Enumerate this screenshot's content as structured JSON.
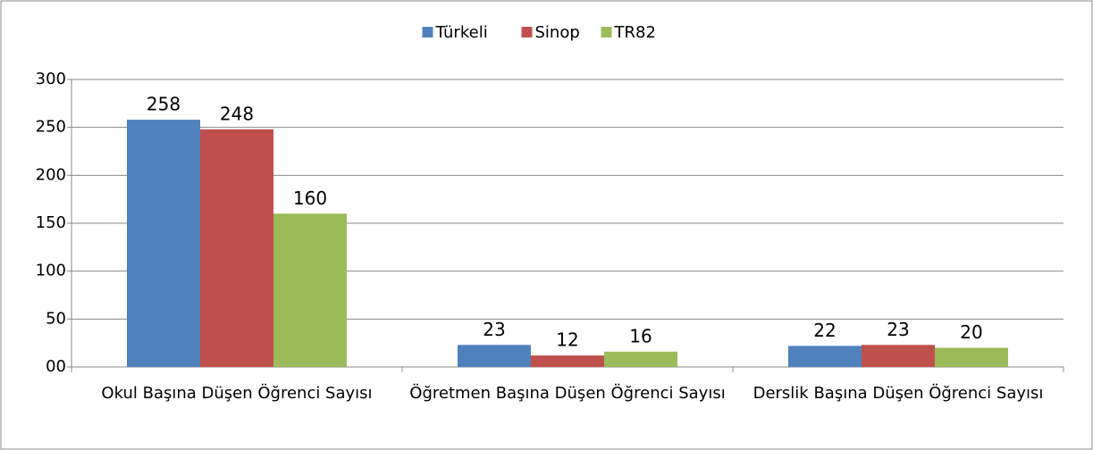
{
  "chart_data": {
    "type": "bar",
    "categories": [
      "Okul Başına Düşen Öğrenci Sayısı",
      "Öğretmen Başına Düşen Öğrenci Sayısı",
      "Derslik Başına Düşen Öğrenci Sayısı"
    ],
    "series": [
      {
        "name": "Türkeli",
        "color": "#4f81bd",
        "values": [
          258,
          23,
          22
        ]
      },
      {
        "name": "Sinop",
        "color": "#c0504d",
        "values": [
          248,
          12,
          23
        ]
      },
      {
        "name": "TR82",
        "color": "#9bbb59",
        "values": [
          160,
          16,
          20
        ]
      }
    ],
    "ylim": [
      0,
      300
    ],
    "yticks": [
      {
        "value": 0,
        "label": "00"
      },
      50,
      100,
      150,
      200,
      250,
      300
    ],
    "grid": true,
    "legend": "top"
  }
}
